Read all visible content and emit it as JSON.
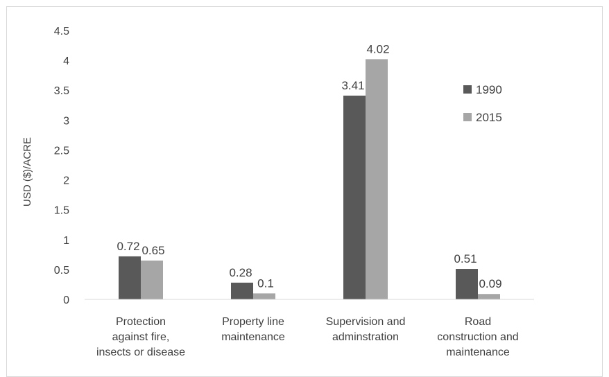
{
  "chart_data": {
    "type": "bar",
    "title": "",
    "xlabel": "",
    "ylabel": "USD ($)/ACRE",
    "ylim": [
      0,
      4.5
    ],
    "yticks": [
      0,
      0.5,
      1,
      1.5,
      2,
      2.5,
      3,
      3.5,
      4,
      4.5
    ],
    "ytick_labels": [
      "0",
      "0.5",
      "1",
      "1.5",
      "2",
      "2.5",
      "3",
      "3.5",
      "4",
      "4.5"
    ],
    "grid": false,
    "legend_position": "right",
    "categories": [
      [
        "Protection",
        "against fire,",
        "insects or disease"
      ],
      [
        "Property line",
        "maintenance"
      ],
      [
        "Supervision and",
        "adminstration"
      ],
      [
        "Road",
        "construction and",
        "maintenance"
      ]
    ],
    "series": [
      {
        "name": "1990",
        "color": "#595959",
        "values": [
          0.72,
          0.28,
          3.41,
          0.51
        ],
        "labels": [
          "0.72",
          "0.28",
          "3.41",
          "0.51"
        ]
      },
      {
        "name": "2015",
        "color": "#a6a6a6",
        "values": [
          0.65,
          0.1,
          4.02,
          0.09
        ],
        "labels": [
          "0.65",
          "0.1",
          "4.02",
          "0.09"
        ]
      }
    ]
  }
}
